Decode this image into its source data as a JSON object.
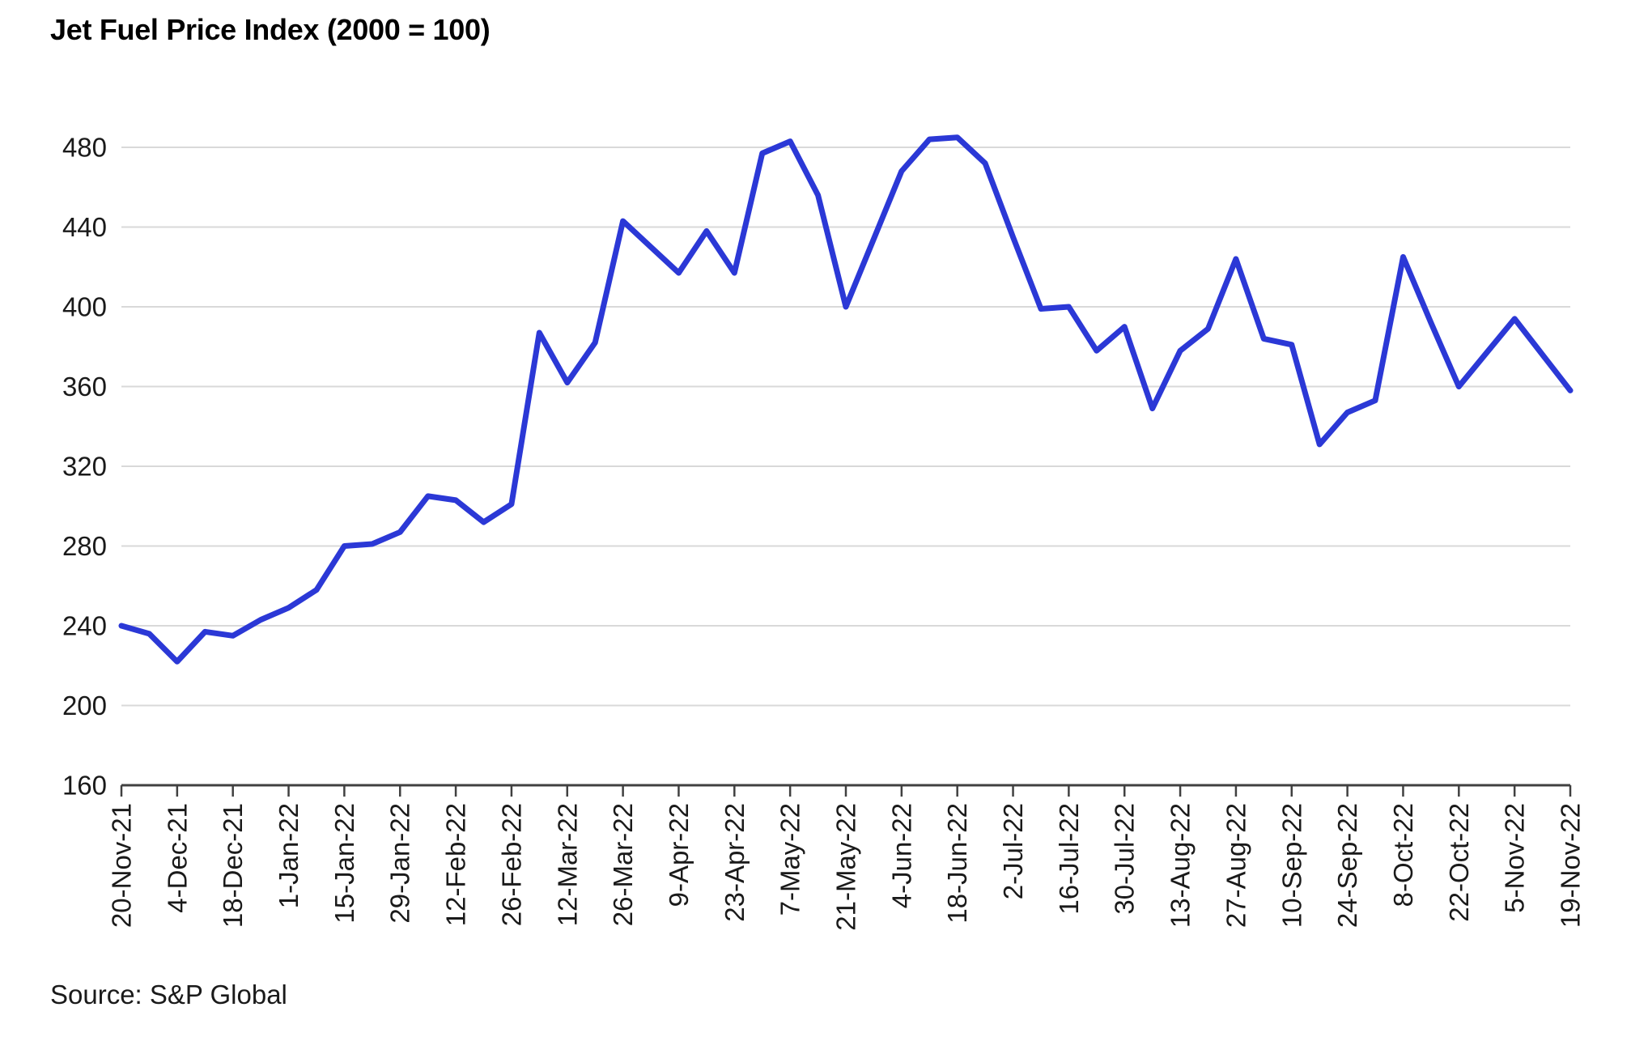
{
  "page": {
    "background": "#ffffff"
  },
  "chart_data": {
    "type": "line",
    "title": "Jet Fuel Price Index (2000 = 100)",
    "source": "Source: S&P Global",
    "series_name": "Jet Fuel Price Index",
    "ylim": [
      160,
      480
    ],
    "y_ticks": [
      160,
      200,
      240,
      280,
      320,
      360,
      400,
      440,
      480
    ],
    "grid": "horizontal",
    "legend": "none",
    "x_tick_labels": [
      "20-Nov-21",
      "4-Dec-21",
      "18-Dec-21",
      "1-Jan-22",
      "15-Jan-22",
      "29-Jan-22",
      "12-Feb-22",
      "26-Feb-22",
      "12-Mar-22",
      "26-Mar-22",
      "9-Apr-22",
      "23-Apr-22",
      "7-May-22",
      "21-May-22",
      "4-Jun-22",
      "18-Jun-22",
      "2-Jul-22",
      "16-Jul-22",
      "30-Jul-22",
      "13-Aug-22",
      "27-Aug-22",
      "10-Sep-22",
      "24-Sep-22",
      "8-Oct-22",
      "22-Oct-22",
      "5-Nov-22",
      "19-Nov-22"
    ],
    "x": [
      "20-Nov-21",
      "27-Nov-21",
      "4-Dec-21",
      "11-Dec-21",
      "18-Dec-21",
      "25-Dec-21",
      "1-Jan-22",
      "8-Jan-22",
      "15-Jan-22",
      "22-Jan-22",
      "29-Jan-22",
      "5-Feb-22",
      "12-Feb-22",
      "19-Feb-22",
      "26-Feb-22",
      "5-Mar-22",
      "12-Mar-22",
      "19-Mar-22",
      "26-Mar-22",
      "2-Apr-22",
      "9-Apr-22",
      "16-Apr-22",
      "23-Apr-22",
      "30-Apr-22",
      "7-May-22",
      "14-May-22",
      "21-May-22",
      "28-May-22",
      "4-Jun-22",
      "11-Jun-22",
      "18-Jun-22",
      "25-Jun-22",
      "2-Jul-22",
      "9-Jul-22",
      "16-Jul-22",
      "23-Jul-22",
      "30-Jul-22",
      "6-Aug-22",
      "13-Aug-22",
      "20-Aug-22",
      "27-Aug-22",
      "3-Sep-22",
      "10-Sep-22",
      "17-Sep-22",
      "24-Sep-22",
      "1-Oct-22",
      "8-Oct-22",
      "15-Oct-22",
      "22-Oct-22",
      "29-Oct-22",
      "5-Nov-22",
      "12-Nov-22",
      "19-Nov-22"
    ],
    "series": [
      {
        "name": "Jet Fuel Price Index",
        "values": [
          240,
          236,
          222,
          237,
          235,
          243,
          249,
          258,
          280,
          281,
          287,
          305,
          303,
          292,
          301,
          387,
          362,
          382,
          443,
          430,
          417,
          438,
          417,
          477,
          483,
          456,
          400,
          434,
          468,
          484,
          485,
          472,
          435,
          399,
          400,
          378,
          390,
          349,
          378,
          389,
          424,
          384,
          381,
          331,
          347,
          353,
          425,
          392,
          360,
          377,
          394,
          376,
          358
        ]
      }
    ],
    "colors": {
      "line": "#2b38d6",
      "gridline": "#d9d9d9",
      "axis": "#404040",
      "text": "#1a1a1a"
    }
  }
}
